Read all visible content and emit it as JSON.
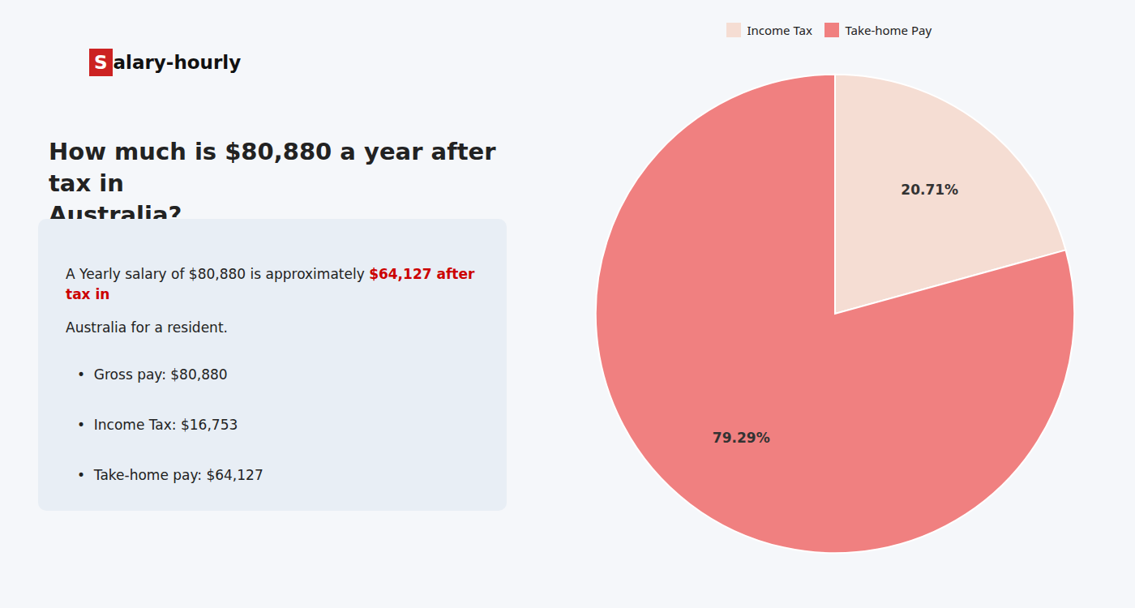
{
  "chart_data": {
    "type": "pie",
    "title": "How much is $80,880 a year after tax in\nAustralia?",
    "categories": [
      "Income Tax",
      "Take-home Pay"
    ],
    "values": [
      20.71,
      79.29
    ],
    "value_labels": [
      "20.71%",
      "79.29%"
    ],
    "colors": [
      "#f5ddd3",
      "#f08080"
    ],
    "data_labels": true,
    "legend": "top",
    "annotations": [
      {
        "text": "S",
        "color": "#cc2222"
      },
      {
        "text": "alary-hourly"
      },
      {
        "text": "A Yearly salary of $80,880 is approximately "
      },
      {
        "text": "$64,127 after tax in",
        "color": "#cc0000"
      },
      {
        "text": "Australia for a resident."
      },
      {
        "text": "•  Gross pay: $80,880"
      },
      {
        "text": "•  Income Tax: $16,753"
      },
      {
        "text": "•  Take-home pay: $64,127"
      }
    ]
  }
}
